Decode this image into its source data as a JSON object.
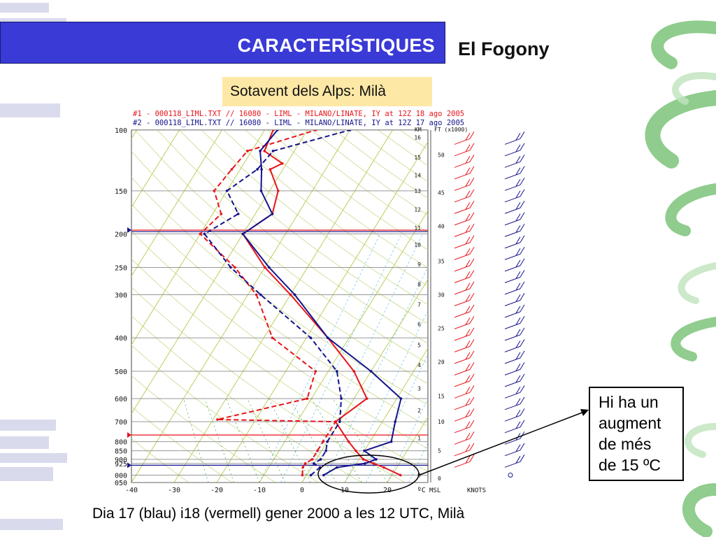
{
  "header": {
    "title": "CARACTERÍSTIQUES",
    "subtitle": "El Fogony"
  },
  "location_label": "Sotavent dels Alps: Milà",
  "callout": {
    "lines": [
      "Hi ha un",
      "augment",
      "de més",
      "de 15 ºC"
    ]
  },
  "caption": "Dia 17 (blau) i18 (vermell) gener 2000 a les 12 UTC, Milà",
  "colors": {
    "header_bg": "#3a3ad6",
    "label_bg": "#fde8a6",
    "red_sounding": "#e8141a",
    "blue_sounding": "#14148c",
    "deco_green": "#6fbf6a",
    "deco_lavender": "#d7d7ec"
  },
  "chart_data": {
    "type": "line",
    "header_lines": [
      "#1 - 000118_LIML.TXT // 16080 - LIML - MILANO/LINATE, IY    at 12Z 18 ago 2005",
      "#2 - 000118_LIML.TXT // 16080 - LIML - MILANO/LINATE, IY    at 12Z 17 ago 2005"
    ],
    "pressure_ticks": [
      "100",
      "150",
      "200",
      "250",
      "300",
      "400",
      "500",
      "600",
      "700",
      "800",
      "850",
      "900",
      "925",
      "000",
      "050"
    ],
    "temperature_ticks": [
      "-40",
      "-30",
      "-20",
      "-10",
      "0",
      "10",
      "20",
      "ºC"
    ],
    "km_label": "KM",
    "km_ticks": [
      "16",
      "15",
      "14",
      "13",
      "12",
      "11",
      "10",
      "9",
      "8",
      "7",
      "6",
      "5",
      "4",
      "3",
      "2",
      "1",
      "0"
    ],
    "ft_label": "FT (x1000)",
    "ft_ticks": [
      "50",
      "45",
      "40",
      "35",
      "30",
      "25",
      "20",
      "15",
      "10",
      "5",
      "0"
    ],
    "msl_label": "MSL",
    "knots_label": "KNOTS",
    "xlim": [
      -40,
      25
    ],
    "pressure_range": [
      1050,
      100
    ],
    "series": [
      {
        "name": "#1",
        "color": "#e8141a",
        "temperature": [
          [
            1000,
            22
          ],
          [
            950,
            17
          ],
          [
            925,
            14
          ],
          [
            900,
            11
          ],
          [
            850,
            8
          ],
          [
            800,
            5
          ],
          [
            700,
            -1
          ],
          [
            600,
            3
          ],
          [
            500,
            -4
          ],
          [
            400,
            -15
          ],
          [
            300,
            -30
          ],
          [
            250,
            -40
          ],
          [
            200,
            -50
          ],
          [
            175,
            -46
          ],
          [
            150,
            -48
          ],
          [
            130,
            -53
          ],
          [
            125,
            -51
          ],
          [
            115,
            -57
          ],
          [
            100,
            -58
          ]
        ],
        "dewpoint": [
          [
            1000,
            -1
          ],
          [
            950,
            -2
          ],
          [
            925,
            -2
          ],
          [
            900,
            -1
          ],
          [
            850,
            -1
          ],
          [
            800,
            -1
          ],
          [
            700,
            -1
          ],
          [
            690,
            -29
          ],
          [
            600,
            -11
          ],
          [
            500,
            -13
          ],
          [
            400,
            -28
          ],
          [
            300,
            -38
          ],
          [
            250,
            -47
          ],
          [
            200,
            -60
          ],
          [
            175,
            -58
          ],
          [
            150,
            -63
          ],
          [
            130,
            -62
          ],
          [
            115,
            -61
          ],
          [
            100,
            -48
          ]
        ]
      },
      {
        "name": "#2",
        "color": "#14148c",
        "temperature": [
          [
            1000,
            4
          ],
          [
            950,
            6
          ],
          [
            925,
            12
          ],
          [
            900,
            14
          ],
          [
            850,
            10
          ],
          [
            800,
            15
          ],
          [
            700,
            13
          ],
          [
            600,
            11
          ],
          [
            500,
            0
          ],
          [
            400,
            -15
          ],
          [
            300,
            -29
          ],
          [
            250,
            -39
          ],
          [
            200,
            -50
          ],
          [
            175,
            -46
          ],
          [
            150,
            -52
          ],
          [
            130,
            -55
          ],
          [
            115,
            -58
          ],
          [
            100,
            -57
          ]
        ],
        "dewpoint": [
          [
            1000,
            1
          ],
          [
            950,
            2
          ],
          [
            925,
            0
          ],
          [
            900,
            1
          ],
          [
            850,
            1
          ],
          [
            800,
            0
          ],
          [
            700,
            0
          ],
          [
            600,
            -3
          ],
          [
            500,
            -8
          ],
          [
            400,
            -19
          ],
          [
            300,
            -37
          ],
          [
            250,
            -48
          ],
          [
            200,
            -59
          ],
          [
            175,
            -54
          ],
          [
            150,
            -60
          ],
          [
            130,
            -56
          ],
          [
            115,
            -55
          ],
          [
            100,
            -40
          ]
        ]
      }
    ]
  }
}
